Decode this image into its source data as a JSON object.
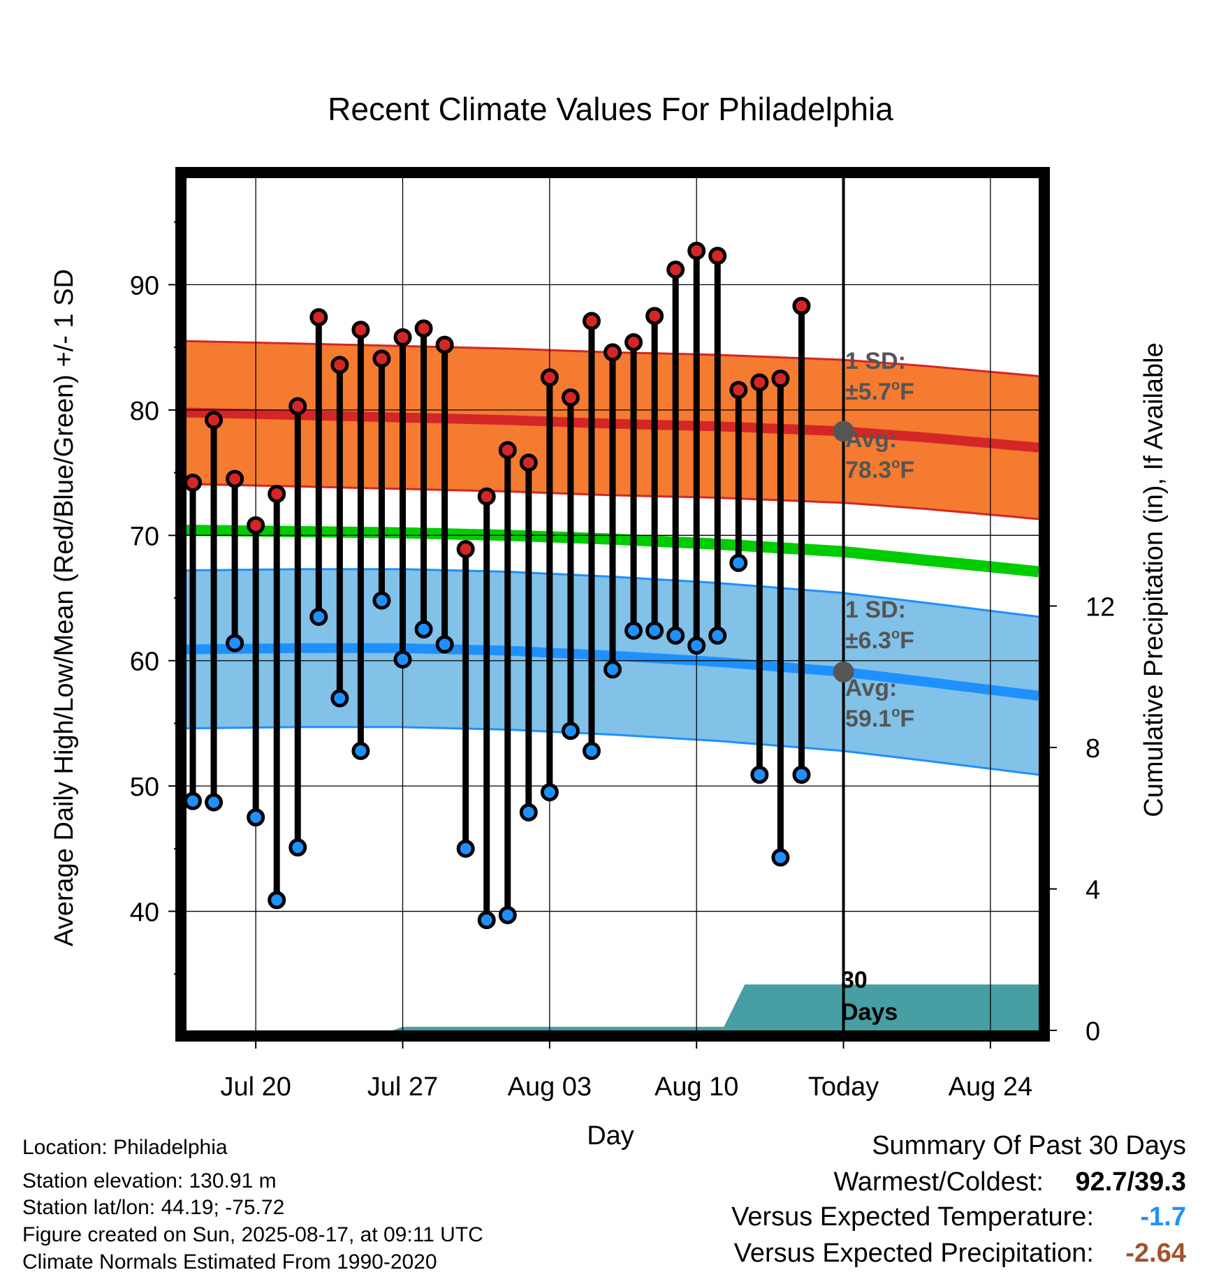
{
  "chart_data": {
    "type": "line",
    "title": "Recent Climate Values For Philadelphia",
    "xlabel": "Day",
    "ylabel_left": "Average Daily High/Low/Mean (Red/Blue/Green) +/- 1 SD",
    "ylabel_right": "Cumulative Precipitation (in), If Available",
    "x_ticks": [
      {
        "day": 3,
        "label": "Jul 20"
      },
      {
        "day": 10,
        "label": "Jul 27"
      },
      {
        "day": 17,
        "label": "Aug 03"
      },
      {
        "day": 24,
        "label": "Aug 10"
      },
      {
        "day": 31,
        "label": "Today"
      },
      {
        "day": 38,
        "label": "Aug 24"
      }
    ],
    "xlim": [
      -0.3,
      40.3
    ],
    "ylim_left": [
      30.5,
      98.5
    ],
    "yticks_left": [
      40,
      50,
      60,
      70,
      80,
      90
    ],
    "ylim_right": [
      0,
      24.1
    ],
    "yticks_right": [
      0,
      4,
      8,
      12
    ],
    "grid": true,
    "today_day": 31,
    "daily_highs": [
      74.2,
      79.2,
      74.5,
      70.8,
      73.3,
      80.3,
      87.4,
      83.6,
      86.4,
      84.1,
      85.8,
      86.5,
      85.2,
      68.9,
      73.1,
      76.8,
      75.8,
      82.6,
      81.0,
      87.1,
      84.6,
      85.4,
      87.5,
      91.2,
      92.7,
      92.3,
      81.6,
      82.2,
      82.5,
      88.3
    ],
    "daily_lows": [
      48.8,
      48.7,
      61.4,
      47.5,
      40.9,
      45.1,
      63.5,
      57.0,
      52.8,
      64.8,
      60.1,
      62.5,
      61.3,
      45.0,
      39.3,
      39.7,
      47.9,
      49.5,
      54.4,
      52.8,
      59.3,
      62.4,
      62.4,
      62.0,
      61.2,
      62.0,
      67.8,
      50.9,
      44.3,
      50.9
    ],
    "normal_high": {
      "x": [
        -0.3,
        5,
        10,
        15,
        20,
        25,
        31,
        35,
        40.3
      ],
      "y": [
        79.8,
        79.6,
        79.4,
        79.2,
        78.9,
        78.7,
        78.3,
        77.8,
        77.0
      ]
    },
    "normal_high_sd": 5.7,
    "normal_low": {
      "x": [
        -0.3,
        5,
        10,
        15,
        20,
        25,
        31,
        35,
        40.3
      ],
      "y": [
        60.9,
        61.0,
        61.0,
        60.8,
        60.4,
        59.9,
        59.1,
        58.3,
        57.2
      ]
    },
    "normal_low_sd": 6.3,
    "normal_mean": {
      "x": [
        -0.3,
        5,
        10,
        15,
        20,
        25,
        31,
        35,
        40.3
      ],
      "y": [
        70.4,
        70.3,
        70.2,
        70.0,
        69.7,
        69.3,
        68.7,
        68.0,
        67.1
      ]
    },
    "precip": {
      "x": [
        -0.3,
        9.5,
        10,
        25.3,
        26.3,
        40.3
      ],
      "y": [
        0,
        0,
        0.1,
        0.1,
        1.3,
        1.3
      ]
    },
    "annotations": {
      "high_sd_label": "1 SD:",
      "high_sd_value": "±5.7",
      "high_avg_label": "Avg:",
      "high_avg_value": "78.3",
      "low_sd_label": "1 SD:",
      "low_sd_value": "±6.3",
      "low_avg_label": "Avg:",
      "low_avg_value": "59.1",
      "unit": "F",
      "degree": "o",
      "days_number": "30",
      "days_word": "Days"
    },
    "colors": {
      "high_band": "#f47b30",
      "high_line": "#d42626",
      "low_band": "#82c1e8",
      "low_line": "#1e90ff",
      "mean_line": "#00cc00",
      "precip_fill": "#479ea3",
      "annotation_text": "#555555",
      "temp_departure": "#1e90ff",
      "precip_departure": "#a0522d"
    }
  },
  "station": {
    "location": "Location: Philadelphia",
    "elevation": "Station elevation: 130.91 m",
    "latlon": "Station lat/lon: 44.19; -75.72",
    "created": "Figure created on Sun, 2025-08-17, at 09:11 UTC",
    "normals": "Climate Normals Estimated From 1990-2020"
  },
  "summary": {
    "title": "Summary Of Past 30 Days",
    "warm_cold_label": "Warmest/Coldest:",
    "warm_cold_value": "92.7/39.3",
    "temp_label": "Versus Expected Temperature:",
    "temp_value": "-1.7",
    "precip_label": "Versus Expected Precipitation:",
    "precip_value": "-2.64"
  }
}
